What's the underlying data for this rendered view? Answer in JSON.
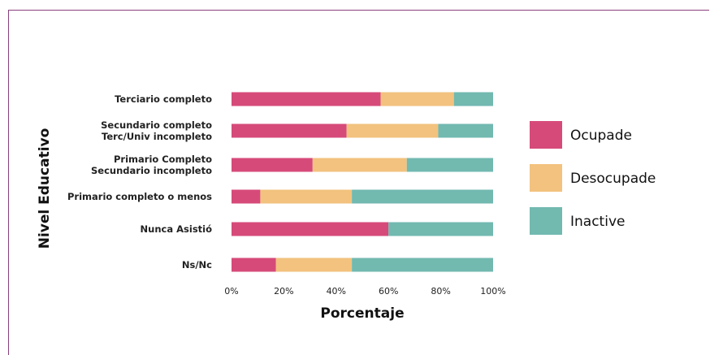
{
  "chart_data": {
    "type": "bar",
    "orientation": "horizontal",
    "stacked": true,
    "title": "",
    "xlabel": "Porcentaje",
    "ylabel": "Nivel Educativo",
    "xlim": [
      0,
      100
    ],
    "xticks": [
      "0%",
      "20%",
      "40%",
      "60%",
      "80%",
      "100%"
    ],
    "categories": [
      [
        "Terciario completo"
      ],
      [
        "Secundario completo",
        "Terc/Univ incompleto"
      ],
      [
        "Primario Completo",
        "Secundario incompleto"
      ],
      [
        "Primario completo o menos"
      ],
      [
        "Nunca Asistió"
      ],
      [
        "Ns/Nc"
      ]
    ],
    "series": [
      {
        "name": "Ocupade",
        "color": "#d64a7a",
        "values": [
          57,
          44,
          31,
          11,
          60,
          17
        ]
      },
      {
        "name": "Desocupade",
        "color": "#f2c27e",
        "values": [
          28,
          35,
          36,
          35,
          0,
          29
        ]
      },
      {
        "name": "Inactive",
        "color": "#72b9b0",
        "values": [
          15,
          21,
          33,
          54,
          40,
          54
        ]
      }
    ],
    "grid": false,
    "legend_position": "right"
  }
}
